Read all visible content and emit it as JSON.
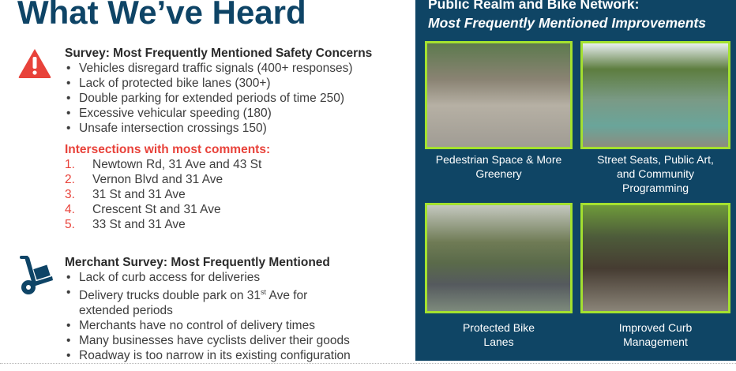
{
  "title": "What We’ve Heard",
  "safety": {
    "heading": "Survey: Most Frequently Mentioned Safety Concerns",
    "items": [
      "Vehicles disregard traffic signals (400+ responses)",
      "Lack of protected bike lanes (300+)",
      "Double parking for extended periods of time 250)",
      "Excessive vehicular speeding (180)",
      "Unsafe intersection crossings 150)"
    ]
  },
  "intersections": {
    "heading": "Intersections with most comments:",
    "items": [
      {
        "n": "1.",
        "text": "Newtown Rd, 31 Ave and 43 St"
      },
      {
        "n": "2.",
        "text": "Vernon Blvd and 31 Ave"
      },
      {
        "n": "3.",
        "text": "31 St and 31 Ave"
      },
      {
        "n": "4.",
        "text": "Crescent St and 31 Ave"
      },
      {
        "n": "5.",
        "text": "33 St and 31 Ave"
      }
    ]
  },
  "merchant": {
    "heading": "Merchant Survey: Most Frequently Mentioned",
    "items": [
      "Lack of curb access for deliveries",
      "Delivery trucks double park on 31",
      "extended periods",
      "Merchants have no control of delivery times",
      "Many businesses have cyclists deliver their goods",
      "Roadway is too narrow in its existing configuration"
    ],
    "sup": "st",
    "after_sup": " Ave for"
  },
  "panel": {
    "title_line1": "Public Realm and Bike Network:",
    "title_line2": "Most Frequently Mentioned Improvements",
    "captions": [
      "Pedestrian Space & More Greenery",
      "Street Seats, Public Art, and Community Programming",
      "Protected Bike Lanes",
      "Improved Curb Management"
    ],
    "bg_color": "#0f4565",
    "border_color": "#a4e12f"
  },
  "colors": {
    "title": "#0e4466",
    "accent_red": "#e8423a"
  }
}
